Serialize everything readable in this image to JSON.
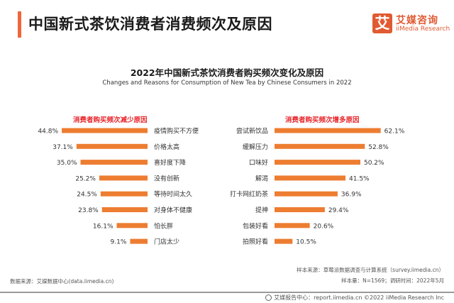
{
  "header": {
    "title": "中国新式茶饮消费者消费频次及原因",
    "accent_color": "#f0663a"
  },
  "logo": {
    "icon_char": "艾",
    "name_cn": "艾媒咨询",
    "name_en": "iiMedia Research",
    "color": "#e05a32"
  },
  "chart_data": [
    {
      "type": "bar",
      "orientation": "horizontal",
      "direction": "right-to-left",
      "title": "2022年中国新式茶饮消费者购买频次变化及原因",
      "subtitle": "Changes and Reasons for Consumption of New Tea by Chinese Consumers in 2022",
      "panel_title": "消费者购买频次减少原因",
      "categories": [
        "疫情购买不方便",
        "价格太高",
        "喜好度下降",
        "没有创新",
        "等待时间太久",
        "对身体不健康",
        "怕长胖",
        "门店太少"
      ],
      "values": [
        44.8,
        37.1,
        35.0,
        25.2,
        24.5,
        23.8,
        16.1,
        9.1
      ],
      "value_labels": [
        "44.8%",
        "37.1%",
        "35.0%",
        "25.2%",
        "24.5%",
        "23.8%",
        "16.1%",
        "9.1%"
      ],
      "unit": "%",
      "color": "#ed7d31",
      "grid": false
    },
    {
      "type": "bar",
      "orientation": "horizontal",
      "direction": "left-to-right",
      "panel_title": "消费者购买频次增多原因",
      "categories": [
        "尝试新饮品",
        "缓解压力",
        "口味好",
        "解渴",
        "打卡网红奶茶",
        "提神",
        "包装好看",
        "拍照好看"
      ],
      "values": [
        62.1,
        52.8,
        50.2,
        41.5,
        36.9,
        29.4,
        20.6,
        10.5
      ],
      "value_labels": [
        "62.1%",
        "52.8%",
        "50.2%",
        "41.5%",
        "36.9%",
        "29.4%",
        "20.6%",
        "10.5%"
      ],
      "unit": "%",
      "color": "#ed7d31",
      "grid": false
    }
  ],
  "sources": {
    "data_source": "数据来源：艾媒数据中心(data.iimedia.cn)",
    "sample_source": "样本来源：草莓派数据调查与计算系统（survey.iimedia.cn）",
    "sample_size": "样本量：N=1569；调研时间：2022年5月"
  },
  "footer": {
    "text": "艾媒报告中心：report.iimedia.cn    ©2022  iiMedia Research  Inc"
  }
}
